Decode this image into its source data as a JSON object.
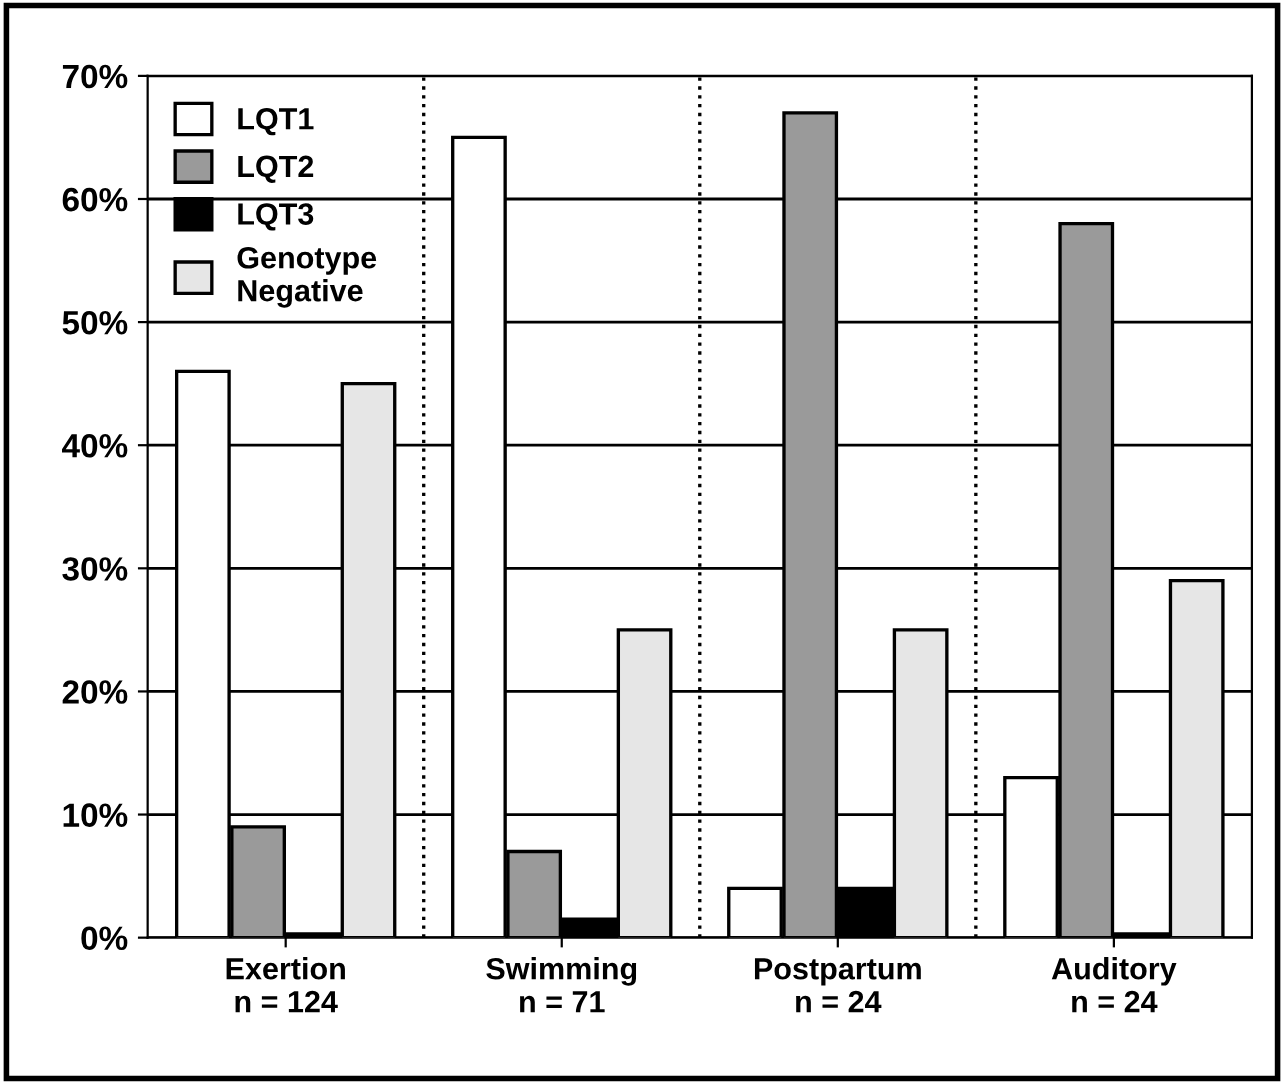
{
  "chart_data": {
    "type": "bar",
    "categories": [
      "Exertion\nn = 124",
      "Swimming\nn = 71",
      "Postpartum\nn = 24",
      "Auditory\nn = 24"
    ],
    "series": [
      {
        "name": "LQT1",
        "color": "#ffffff",
        "values": [
          46,
          65,
          4,
          13
        ]
      },
      {
        "name": "LQT2",
        "color": "#9a9a9a",
        "values": [
          9,
          7,
          67,
          58
        ]
      },
      {
        "name": "LQT3",
        "color": "#000000",
        "values": [
          0.3,
          1.5,
          4,
          0.3
        ]
      },
      {
        "name": "Genotype\nNegative",
        "color": "#e6e6e6",
        "values": [
          45,
          25,
          25,
          29
        ]
      }
    ],
    "ylim": [
      0,
      70
    ],
    "yticks": [
      {
        "value": 0,
        "label": "0%"
      },
      {
        "value": 10,
        "label": "10%"
      },
      {
        "value": 20,
        "label": "20%"
      },
      {
        "value": 30,
        "label": "30%"
      },
      {
        "value": 40,
        "label": "40%"
      },
      {
        "value": 50,
        "label": "50%"
      },
      {
        "value": 60,
        "label": "60%"
      },
      {
        "value": 70,
        "label": "70%"
      }
    ],
    "grid": "y",
    "legend": "top left"
  }
}
